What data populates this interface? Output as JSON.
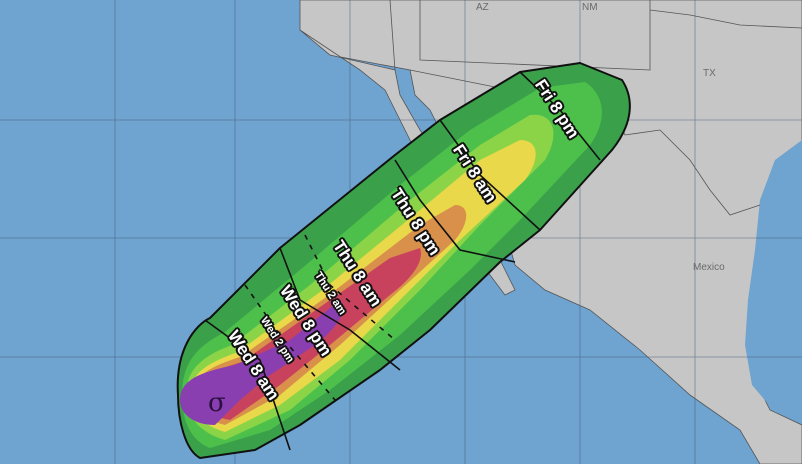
{
  "map": {
    "place_labels": [
      "AZ",
      "NM",
      "TX",
      "Mexico"
    ],
    "time_labels_major": [
      "Wed 8 am",
      "Wed 8 pm",
      "Thu 8 am",
      "Thu 8 pm",
      "Fri 8 am",
      "Fri 8 pm"
    ],
    "time_labels_minor": [
      "Wed 2 pm",
      "Thu 2 am"
    ],
    "storm_symbol": "tropical-cyclone-icon",
    "colors": {
      "ocean": "#6fa3d0",
      "land": "#c6c6c6",
      "green_dark": "#3aa14a",
      "green": "#4cc04a",
      "green_light": "#8bd448",
      "yellow_green": "#c5e04a",
      "yellow": "#e9d84a",
      "orange": "#d9904a",
      "red": "#c8425e",
      "purple": "#8a3fb0"
    }
  }
}
